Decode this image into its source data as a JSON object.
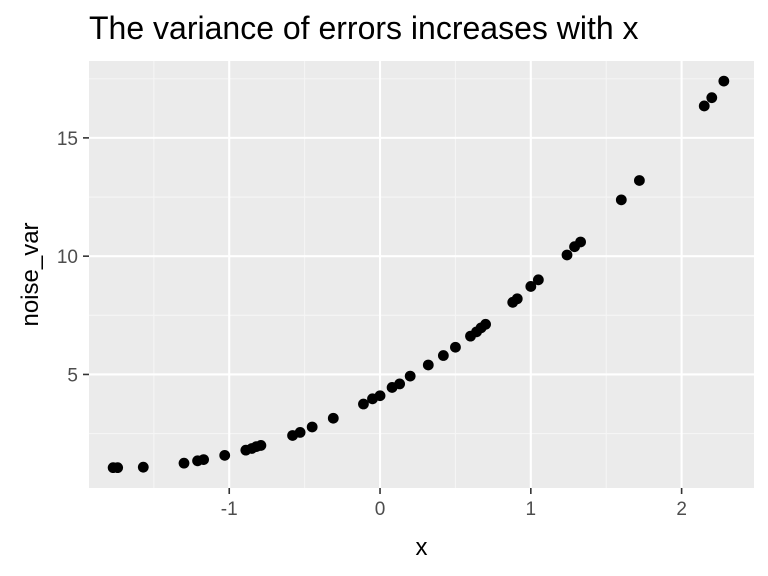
{
  "chart_data": {
    "type": "scatter",
    "title": "The variance of errors increases with x",
    "xlabel": "x",
    "ylabel": "noise_var",
    "xlim": [
      -1.93,
      2.48
    ],
    "ylim": [
      0.2,
      18.25
    ],
    "x_ticks": [
      -1,
      0,
      1,
      2
    ],
    "x_tick_labels": [
      "-1",
      "0",
      "1",
      "2"
    ],
    "y_ticks": [
      5,
      10,
      15
    ],
    "y_tick_labels": [
      "5",
      "10",
      "15"
    ],
    "grid": true,
    "legend": "none",
    "colors": {
      "panel_background": "#ebebeb",
      "grid_major": "#ffffff",
      "grid_minor": "#f5f5f5",
      "point": "#000000",
      "tick": "#333333",
      "tick_label": "#4d4d4d"
    },
    "points": [
      {
        "x": -1.77,
        "y": 1.06
      },
      {
        "x": -1.74,
        "y": 1.06
      },
      {
        "x": -1.57,
        "y": 1.08
      },
      {
        "x": -1.3,
        "y": 1.25
      },
      {
        "x": -1.21,
        "y": 1.35
      },
      {
        "x": -1.17,
        "y": 1.4
      },
      {
        "x": -1.03,
        "y": 1.58
      },
      {
        "x": -0.89,
        "y": 1.8
      },
      {
        "x": -0.85,
        "y": 1.87
      },
      {
        "x": -0.82,
        "y": 1.95
      },
      {
        "x": -0.79,
        "y": 2.0
      },
      {
        "x": -0.58,
        "y": 2.42
      },
      {
        "x": -0.53,
        "y": 2.55
      },
      {
        "x": -0.45,
        "y": 2.78
      },
      {
        "x": -0.31,
        "y": 3.15
      },
      {
        "x": -0.11,
        "y": 3.75
      },
      {
        "x": -0.05,
        "y": 3.97
      },
      {
        "x": 0.0,
        "y": 4.1
      },
      {
        "x": 0.08,
        "y": 4.45
      },
      {
        "x": 0.13,
        "y": 4.6
      },
      {
        "x": 0.2,
        "y": 4.93
      },
      {
        "x": 0.32,
        "y": 5.4
      },
      {
        "x": 0.42,
        "y": 5.8
      },
      {
        "x": 0.5,
        "y": 6.15
      },
      {
        "x": 0.6,
        "y": 6.62
      },
      {
        "x": 0.64,
        "y": 6.8
      },
      {
        "x": 0.67,
        "y": 6.97
      },
      {
        "x": 0.7,
        "y": 7.12
      },
      {
        "x": 0.88,
        "y": 8.05
      },
      {
        "x": 0.91,
        "y": 8.2
      },
      {
        "x": 1.0,
        "y": 8.72
      },
      {
        "x": 1.05,
        "y": 9.0
      },
      {
        "x": 1.24,
        "y": 10.05
      },
      {
        "x": 1.29,
        "y": 10.4
      },
      {
        "x": 1.33,
        "y": 10.6
      },
      {
        "x": 1.6,
        "y": 12.38
      },
      {
        "x": 1.72,
        "y": 13.2
      },
      {
        "x": 2.15,
        "y": 16.35
      },
      {
        "x": 2.2,
        "y": 16.7
      },
      {
        "x": 2.28,
        "y": 17.4
      }
    ]
  }
}
